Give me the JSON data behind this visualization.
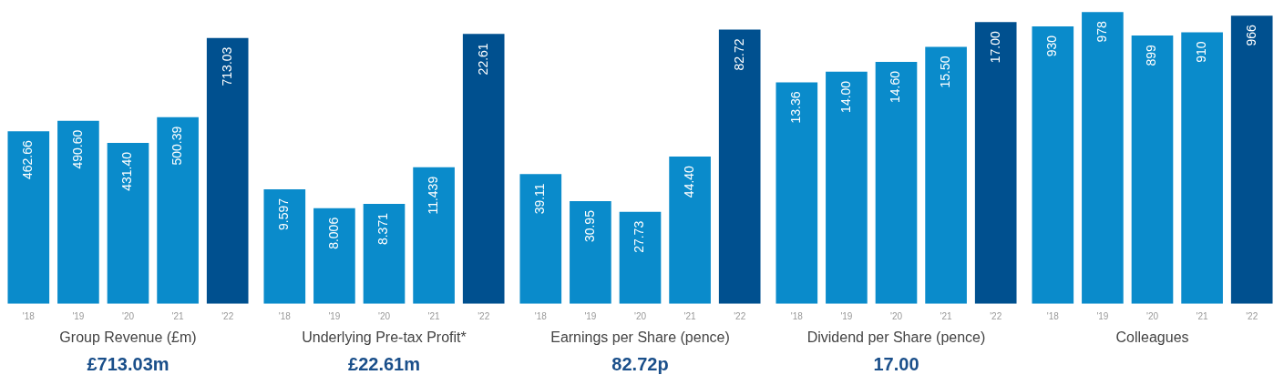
{
  "chart_data": [
    {
      "type": "bar",
      "xlabel": "Group Revenue (£m)",
      "subtitle": "£713.03m",
      "categories": [
        "'18",
        "'19",
        "'20",
        "'21",
        "'22"
      ],
      "values": [
        462.66,
        490.6,
        431.4,
        500.39,
        713.03
      ],
      "colors": [
        "#0a8bcb",
        "#0a8bcb",
        "#0a8bcb",
        "#0a8bcb",
        "#00508f"
      ],
      "data_labels": true,
      "value_labels": [
        "462.66",
        "490.60",
        "431.40",
        "500.39",
        "713.03"
      ],
      "grid": false,
      "legend": false,
      "tick_labels": "x"
    },
    {
      "type": "bar",
      "xlabel": "Underlying Pre-tax Profit*",
      "subtitle": "£22.61m",
      "categories": [
        "'18",
        "'19",
        "'20",
        "'21",
        "'22"
      ],
      "values": [
        9.597,
        8.006,
        8.371,
        11.439,
        22.61
      ],
      "colors": [
        "#0a8bcb",
        "#0a8bcb",
        "#0a8bcb",
        "#0a8bcb",
        "#00508f"
      ],
      "data_labels": true,
      "value_labels": [
        "9.597",
        "8.006",
        "8.371",
        "11.439",
        "22.61"
      ],
      "grid": false,
      "legend": false,
      "tick_labels": "x"
    },
    {
      "type": "bar",
      "xlabel": "Earnings per Share (pence)",
      "subtitle": "82.72p",
      "categories": [
        "'18",
        "'19",
        "'20",
        "'21",
        "'22"
      ],
      "values": [
        39.11,
        30.95,
        27.73,
        44.4,
        82.72
      ],
      "colors": [
        "#0a8bcb",
        "#0a8bcb",
        "#0a8bcb",
        "#0a8bcb",
        "#00508f"
      ],
      "data_labels": true,
      "value_labels": [
        "39.11",
        "30.95",
        "27.73",
        "44.40",
        "82.72"
      ],
      "grid": false,
      "legend": false,
      "tick_labels": "x"
    },
    {
      "type": "bar",
      "xlabel": "Dividend per Share (pence)",
      "subtitle": "17.00",
      "categories": [
        "'18",
        "'19",
        "'20",
        "'21",
        "'22"
      ],
      "values": [
        13.36,
        14.0,
        14.6,
        15.5,
        17.0
      ],
      "colors": [
        "#0a8bcb",
        "#0a8bcb",
        "#0a8bcb",
        "#0a8bcb",
        "#00508f"
      ],
      "data_labels": true,
      "value_labels": [
        "13.36",
        "14.00",
        "14.60",
        "15.50",
        "17.00"
      ],
      "grid": false,
      "legend": false,
      "tick_labels": "x"
    },
    {
      "type": "bar",
      "xlabel": "Colleagues",
      "categories": [
        "'18",
        "'19",
        "'20",
        "'21",
        "'22"
      ],
      "values": [
        930,
        978,
        899,
        910,
        966
      ],
      "colors": [
        "#0a8bcb",
        "#0a8bcb",
        "#0a8bcb",
        "#0a8bcb",
        "#00508f"
      ],
      "data_labels": true,
      "grid": false,
      "legend": false,
      "tick_labels": "x"
    }
  ]
}
